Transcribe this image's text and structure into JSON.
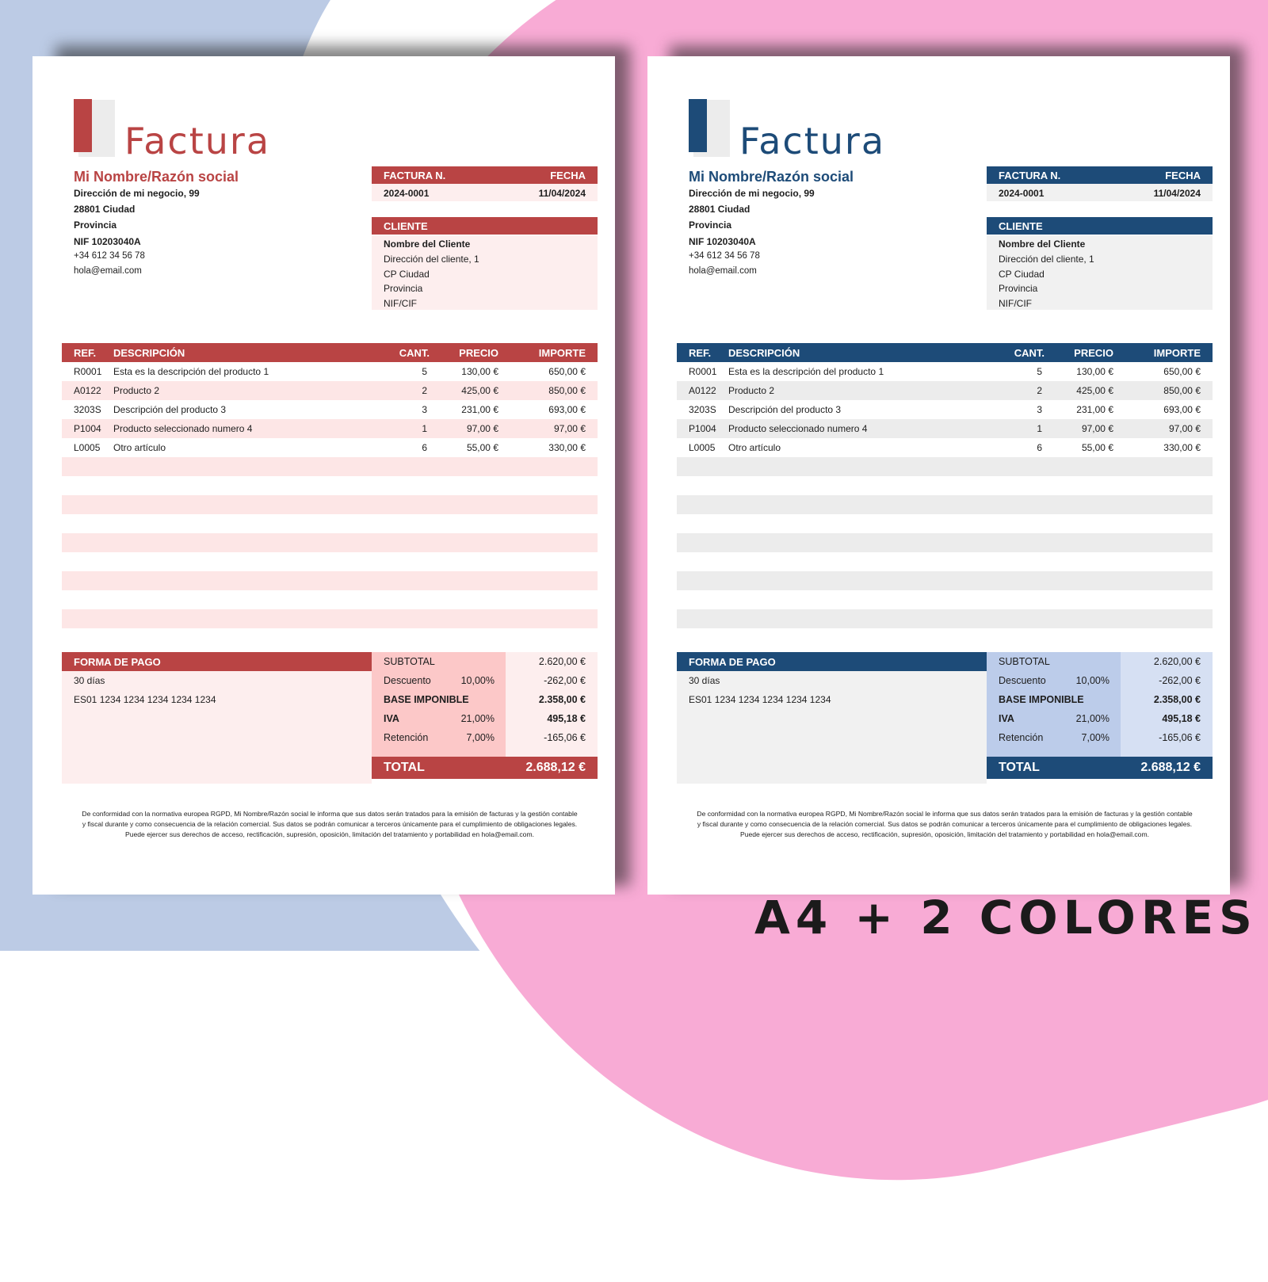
{
  "caption": "A4 + 2 COLORES",
  "themes": {
    "red": {
      "accent": "#b94444",
      "soft": "#fdeeee",
      "stripe": "#fde6e6",
      "totals": "#f8b2b2"
    },
    "blue": {
      "accent": "#1d4b78",
      "soft": "#f1f1f1",
      "stripe": "#ececec",
      "totals": "#bcccea"
    }
  },
  "invoice": {
    "title": "Factura",
    "business": {
      "name": "Mi Nombre/Razón social",
      "address": "Dirección de mi negocio, 99",
      "city": "28801 Ciudad",
      "province": "Provincia",
      "nif": "NIF 10203040A",
      "phone": "+34 612 34 56 78",
      "email": "hola@email.com"
    },
    "meta": {
      "number_label": "FACTURA N.",
      "date_label": "FECHA",
      "number": "2024-0001",
      "date": "11/04/2024"
    },
    "client": {
      "label": "CLIENTE",
      "name": "Nombre del Cliente",
      "address": "Dirección del cliente, 1",
      "city": "CP Ciudad",
      "province": "Provincia",
      "nif": "NIF/CIF"
    },
    "columns": {
      "ref": "REF.",
      "desc": "DESCRIPCIÓN",
      "qty": "CANT.",
      "price": "PRECIO",
      "amount": "IMPORTE"
    },
    "items": [
      {
        "ref": "R0001",
        "desc": "Esta es la descripción del producto 1",
        "qty": "5",
        "price": "130,00 €",
        "amount": "650,00 €"
      },
      {
        "ref": "A0122",
        "desc": "Producto 2",
        "qty": "2",
        "price": "425,00 €",
        "amount": "850,00 €"
      },
      {
        "ref": "3203S",
        "desc": "Descripción del producto 3",
        "qty": "3",
        "price": "231,00 €",
        "amount": "693,00 €"
      },
      {
        "ref": "P1004",
        "desc": "Producto seleccionado numero 4",
        "qty": "1",
        "price": "97,00 €",
        "amount": "97,00 €"
      },
      {
        "ref": "L0005",
        "desc": "Otro artículo",
        "qty": "6",
        "price": "55,00 €",
        "amount": "330,00 €"
      }
    ],
    "payment": {
      "label": "FORMA DE PAGO",
      "terms": "30 días",
      "iban": "ES01 1234 1234 1234 1234 1234"
    },
    "totals": {
      "subtotal_label": "SUBTOTAL",
      "subtotal": "2.620,00 €",
      "discount_label": "Descuento",
      "discount_pct": "10,00%",
      "discount": "-262,00 €",
      "base_label": "BASE IMPONIBLE",
      "base": "2.358,00 €",
      "iva_label": "IVA",
      "iva_pct": "21,00%",
      "iva": "495,18 €",
      "ret_label": "Retención",
      "ret_pct": "7,00%",
      "ret": "-165,06 €",
      "total_label": "TOTAL",
      "total": "2.688,12 €"
    },
    "legal": [
      "De conformidad con la normativa europea RGPD, Mi Nombre/Razón social le informa que sus datos serán tratados para la emisión de facturas y la gestión contable",
      "y fiscal durante y como consecuencia de la relación comercial. Sus datos se podrán comunicar a terceros únicamente para el cumplimiento de obligaciones legales.",
      "Puede ejercer sus derechos de acceso, rectificación, supresión, oposición, limitación del tratamiento y portabilidad en hola@email.com."
    ]
  }
}
